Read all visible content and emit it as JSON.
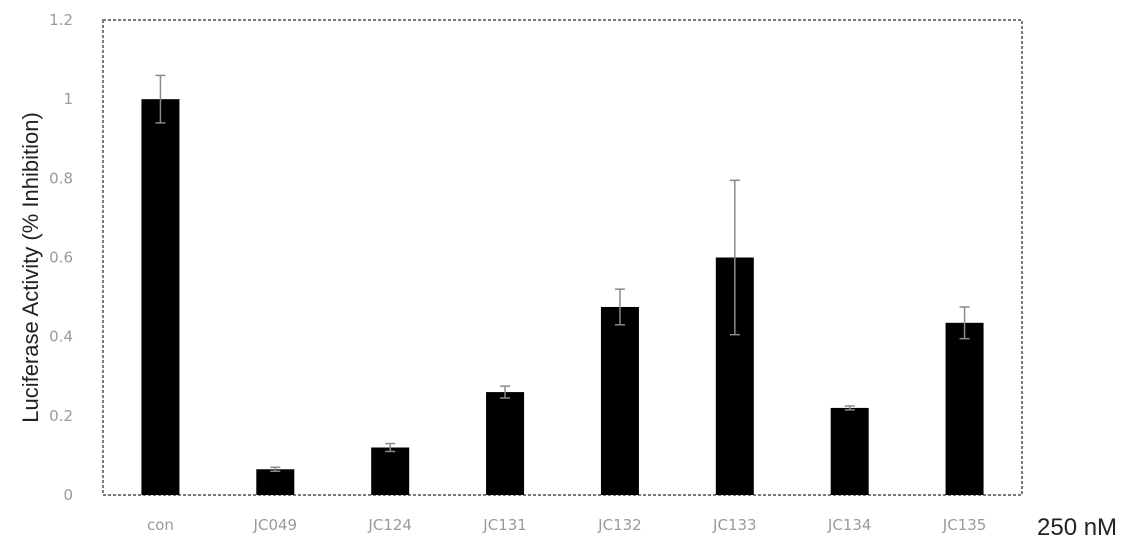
{
  "chart_data": {
    "type": "bar",
    "title": "",
    "xlabel": "",
    "ylabel": "Luciferase Activity (% Inhibition)",
    "x_annotation": "250 nM",
    "categories": [
      "con",
      "JC049",
      "JC124",
      "JC131",
      "JC132",
      "JC133",
      "JC134",
      "JC135"
    ],
    "values": [
      1.0,
      0.065,
      0.12,
      0.26,
      0.475,
      0.6,
      0.22,
      0.435
    ],
    "errors": [
      0.06,
      0.005,
      0.01,
      0.015,
      0.045,
      0.195,
      0.005,
      0.04
    ],
    "ylim": [
      0,
      1.2
    ],
    "yticks": [
      "0",
      "0.2",
      "0.4",
      "0.6",
      "0.8",
      "1",
      "1.2"
    ],
    "bar_color": "#000000",
    "grid": false,
    "legend": "none"
  }
}
